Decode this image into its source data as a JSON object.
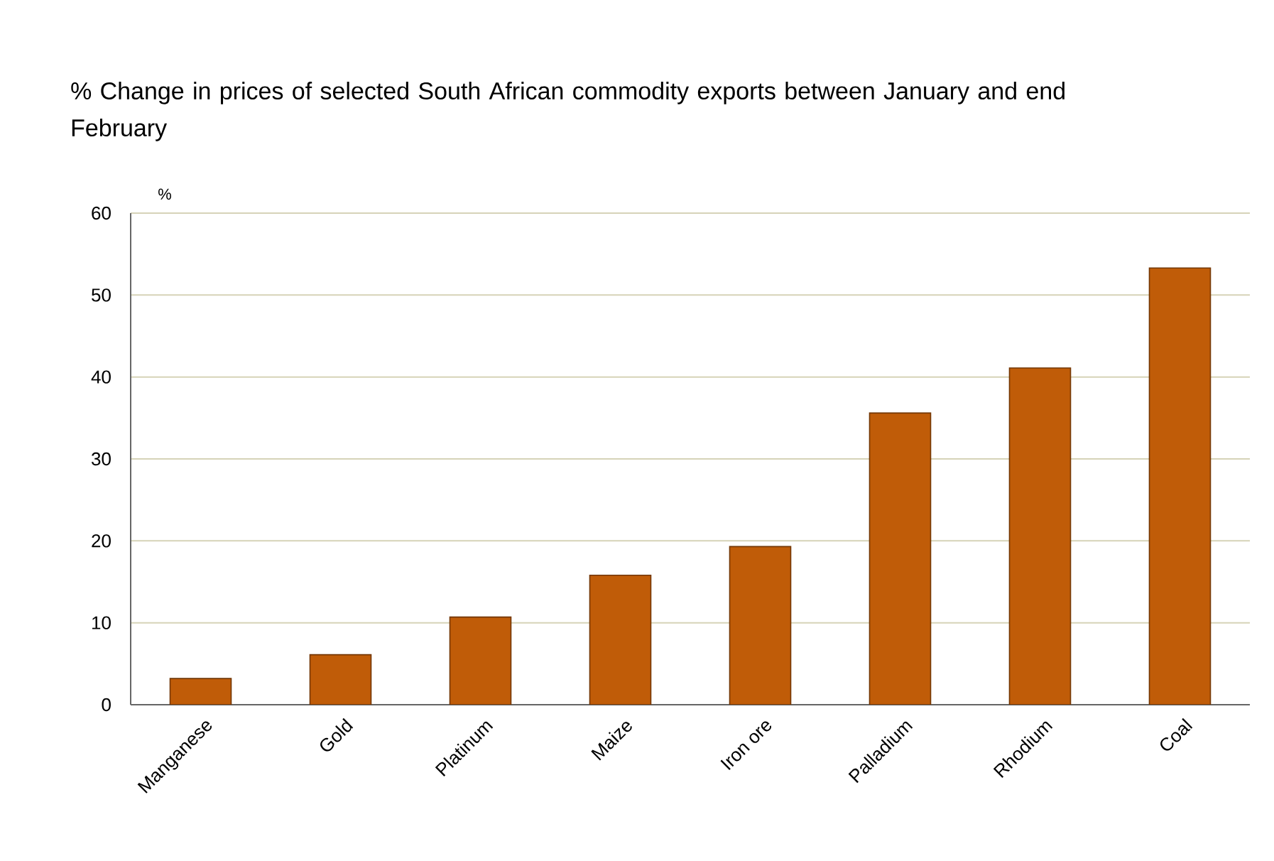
{
  "chart_data": {
    "type": "bar",
    "title": "% Change in prices of selected South African commodity exports between January and end February",
    "ylabel": "%",
    "categories": [
      "Manganese",
      "Gold",
      "Platinum",
      "Maize",
      "Iron ore",
      "Palladium",
      "Rhodium",
      "Coal"
    ],
    "values": [
      3.2,
      6.1,
      10.7,
      15.8,
      19.3,
      35.6,
      41.1,
      53.3
    ],
    "color": "#c05c08",
    "ylim": [
      0,
      60
    ],
    "yticks": [
      0,
      10,
      20,
      30,
      40,
      50,
      60
    ],
    "grid": "y"
  }
}
